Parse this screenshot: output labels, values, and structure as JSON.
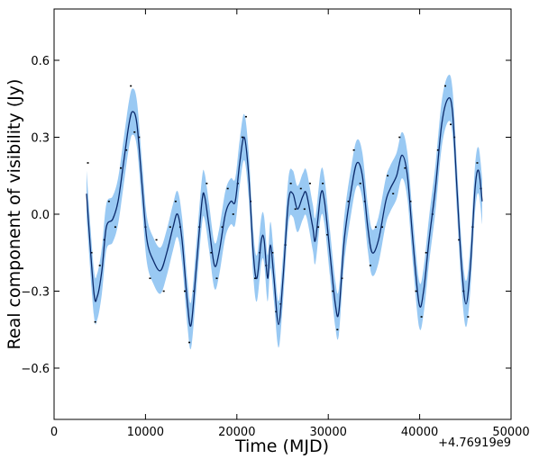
{
  "chart_data": {
    "type": "line",
    "xlabel": "Time (MJD)",
    "ylabel": "Real component of visibility (Jy)",
    "x_offset_text": "+4.76919e9",
    "xlim": [
      0,
      50000
    ],
    "xticks": [
      0,
      10000,
      20000,
      30000,
      40000,
      50000
    ],
    "ylim": [
      -0.8,
      0.8
    ],
    "yticks": [
      {
        "value": -0.6,
        "label": "−0.6"
      },
      {
        "value": -0.3,
        "label": "−0.3"
      },
      {
        "value": 0,
        "label": "0.0"
      },
      0.3,
      0.6
    ],
    "line": {
      "color": "#0b2a6b",
      "band_color": "#8ec3f2",
      "x": [
        3550,
        4340,
        4730,
        5230,
        5720,
        6410,
        7000,
        7600,
        8190,
        8580,
        9070,
        9660,
        10160,
        10850,
        11640,
        12330,
        13020,
        13510,
        14000,
        14600,
        15000,
        15580,
        16180,
        16470,
        16960,
        17550,
        18050,
        18740,
        19330,
        19820,
        20310,
        20810,
        21300,
        21790,
        22190,
        22680,
        22980,
        23370,
        23670,
        24060,
        24560,
        25050,
        25640,
        26130,
        26630,
        27220,
        27610,
        28300,
        28600,
        29190,
        29590,
        30180,
        30770,
        31160,
        31750,
        32540,
        33140,
        33730,
        34320,
        34810,
        35500,
        36290,
        36790,
        37480,
        38070,
        38660,
        39250,
        39940,
        40430,
        41030,
        41720,
        42410,
        43100,
        43590,
        44080,
        44580,
        45070,
        45560,
        46060,
        46450,
        46840
      ],
      "values": [
        0.08,
        -0.3,
        -0.32,
        -0.22,
        -0.05,
        -0.02,
        0.05,
        0.2,
        0.35,
        0.4,
        0.35,
        0.1,
        -0.1,
        -0.18,
        -0.22,
        -0.15,
        -0.05,
        0.0,
        -0.1,
        -0.35,
        -0.43,
        -0.2,
        0.05,
        0.07,
        -0.05,
        -0.2,
        -0.15,
        0.0,
        0.05,
        0.05,
        0.2,
        0.3,
        0.15,
        -0.15,
        -0.25,
        -0.1,
        -0.1,
        -0.25,
        -0.12,
        -0.25,
        -0.43,
        -0.25,
        0.05,
        0.08,
        0.02,
        0.07,
        0.08,
        -0.05,
        -0.1,
        0.08,
        0.05,
        -0.15,
        -0.35,
        -0.38,
        -0.1,
        0.1,
        0.2,
        0.15,
        -0.05,
        -0.15,
        -0.1,
        0.05,
        0.1,
        0.15,
        0.23,
        0.15,
        -0.1,
        -0.35,
        -0.3,
        -0.1,
        0.1,
        0.35,
        0.45,
        0.4,
        0.1,
        -0.2,
        -0.35,
        -0.2,
        0.1,
        0.17,
        0.05
      ],
      "upper": [
        0.17,
        -0.21,
        -0.23,
        -0.13,
        0.04,
        0.07,
        0.14,
        0.29,
        0.44,
        0.49,
        0.44,
        0.19,
        -0.01,
        -0.09,
        -0.13,
        -0.06,
        0.04,
        0.09,
        -0.01,
        -0.26,
        -0.34,
        -0.11,
        0.14,
        0.16,
        0.04,
        -0.11,
        -0.06,
        0.09,
        0.14,
        0.14,
        0.29,
        0.39,
        0.24,
        -0.06,
        -0.16,
        -0.01,
        -0.01,
        -0.16,
        -0.03,
        -0.16,
        -0.34,
        -0.16,
        0.14,
        0.17,
        0.11,
        0.16,
        0.17,
        0.04,
        -0.01,
        0.17,
        0.14,
        -0.06,
        -0.26,
        -0.29,
        -0.01,
        0.19,
        0.29,
        0.24,
        0.04,
        -0.06,
        -0.01,
        0.14,
        0.19,
        0.24,
        0.32,
        0.24,
        -0.01,
        -0.26,
        -0.21,
        -0.01,
        0.19,
        0.44,
        0.54,
        0.49,
        0.19,
        -0.11,
        -0.26,
        -0.11,
        0.19,
        0.26,
        0.14
      ],
      "lower": [
        -0.01,
        -0.39,
        -0.41,
        -0.31,
        -0.14,
        -0.11,
        -0.04,
        0.11,
        0.26,
        0.31,
        0.26,
        0.01,
        -0.19,
        -0.27,
        -0.31,
        -0.24,
        -0.14,
        -0.09,
        -0.19,
        -0.44,
        -0.52,
        -0.29,
        -0.04,
        -0.02,
        -0.14,
        -0.29,
        -0.24,
        -0.09,
        -0.04,
        -0.04,
        0.11,
        0.21,
        0.06,
        -0.24,
        -0.34,
        -0.19,
        -0.19,
        -0.34,
        -0.21,
        -0.34,
        -0.52,
        -0.34,
        -0.04,
        -0.01,
        -0.07,
        -0.02,
        -0.01,
        -0.14,
        -0.19,
        -0.01,
        -0.04,
        -0.24,
        -0.44,
        -0.47,
        -0.19,
        0.01,
        0.11,
        0.06,
        -0.14,
        -0.24,
        -0.19,
        -0.04,
        0.01,
        0.06,
        0.14,
        0.06,
        -0.19,
        -0.44,
        -0.39,
        -0.19,
        0.01,
        0.26,
        0.36,
        0.31,
        0.01,
        -0.29,
        -0.44,
        -0.29,
        0.01,
        0.08,
        -0.04
      ]
    },
    "scatter": {
      "color": "#000000",
      "x": [
        3700,
        4100,
        4500,
        5000,
        5500,
        6000,
        6700,
        7300,
        7900,
        8400,
        8800,
        9300,
        10000,
        10500,
        11200,
        12000,
        12700,
        13300,
        13800,
        14300,
        14800,
        15300,
        15900,
        16700,
        17200,
        17800,
        18400,
        19000,
        19600,
        20100,
        20600,
        21000,
        21500,
        22000,
        22500,
        23200,
        23900,
        24300,
        24800,
        25300,
        25900,
        26400,
        27000,
        27400,
        28000,
        28900,
        29400,
        29900,
        30500,
        31000,
        31500,
        32200,
        32800,
        33500,
        34000,
        34600,
        35200,
        35900,
        36500,
        37100,
        37800,
        38400,
        39000,
        39600,
        40200,
        40700,
        41400,
        42000,
        42800,
        43400,
        43800,
        44300,
        44800,
        45300,
        45800,
        46300,
        46700
      ],
      "values": [
        0.2,
        -0.15,
        -0.42,
        -0.2,
        -0.1,
        0.05,
        -0.05,
        0.18,
        0.25,
        0.5,
        0.32,
        0.3,
        -0.05,
        -0.25,
        -0.1,
        -0.3,
        -0.05,
        0.05,
        -0.05,
        -0.3,
        -0.5,
        -0.3,
        -0.05,
        0.12,
        -0.15,
        -0.25,
        -0.05,
        0.1,
        0.0,
        0.12,
        0.3,
        0.38,
        0.05,
        -0.25,
        -0.15,
        -0.2,
        -0.15,
        -0.38,
        -0.35,
        -0.12,
        0.12,
        0.02,
        0.1,
        0.02,
        0.12,
        -0.05,
        0.12,
        -0.08,
        -0.3,
        -0.45,
        -0.25,
        0.05,
        0.25,
        0.12,
        0.05,
        -0.2,
        -0.05,
        -0.05,
        0.15,
        0.08,
        0.3,
        0.18,
        0.05,
        -0.3,
        -0.4,
        -0.15,
        0.0,
        0.25,
        0.5,
        0.35,
        0.3,
        -0.1,
        -0.3,
        -0.4,
        -0.05,
        0.2,
        0.1
      ]
    }
  }
}
